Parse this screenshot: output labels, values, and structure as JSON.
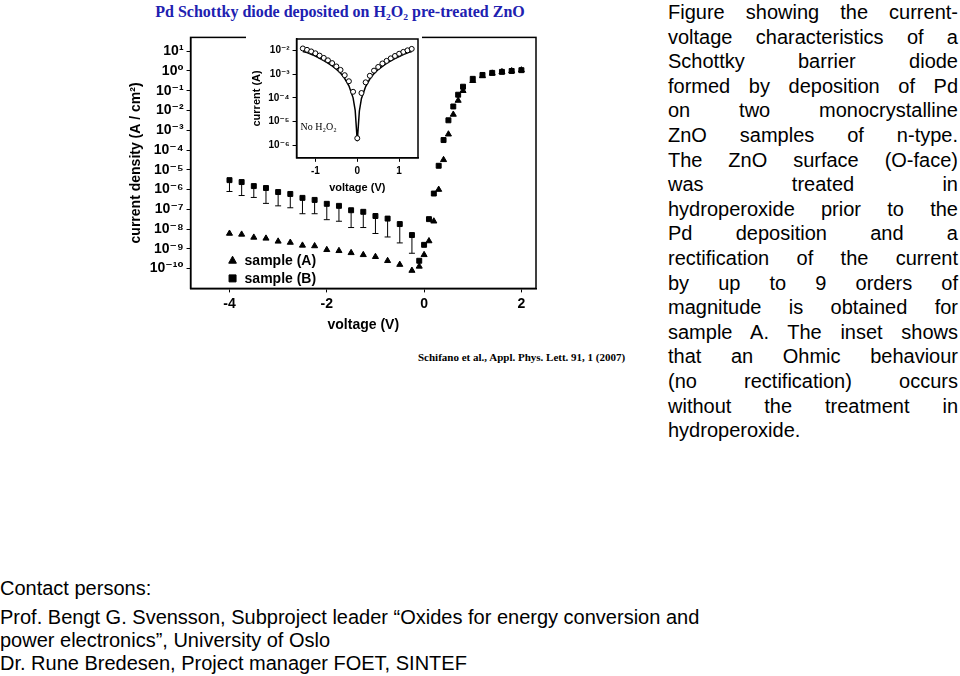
{
  "chart_data": [
    {
      "type": "scatter",
      "title": "Pd Schottky diode deposited on H₂O₂ pre-treated ZnO",
      "x_label": "voltage (V)",
      "y_label": "current density (A / cm²)",
      "x": [
        -4,
        -3.75,
        -3.5,
        -3.25,
        -3,
        -2.75,
        -2.5,
        -2.25,
        -2,
        -1.75,
        -1.5,
        -1.25,
        -1,
        -0.75,
        -0.5,
        -0.25,
        -0.1,
        0,
        0.1,
        0.2,
        0.3,
        0.4,
        0.5,
        0.6,
        0.7,
        0.8,
        1.0,
        1.2,
        1.4,
        1.6,
        1.8,
        2.0
      ],
      "series": [
        {
          "name": "sample (A)",
          "color": "#000000",
          "marker": "triangle",
          "values": [
            6e-09,
            5.4e-09,
            3.8e-09,
            3.4e-09,
            2.4e-09,
            2.1e-09,
            1.5e-09,
            1.4e-09,
            9e-10,
            8e-10,
            6.3e-10,
            5e-10,
            4e-10,
            2.5e-10,
            1.6e-10,
            8e-11,
            1.3e-10,
            5e-10,
            2.5e-09,
            2.5e-08,
            1e-06,
            3.2e-05,
            0.00063,
            0.0063,
            0.032,
            0.1,
            0.32,
            0.56,
            0.76,
            0.9,
            1.0,
            1.1
          ]
        },
        {
          "name": "sample (B)",
          "color": "#000000",
          "marker": "square",
          "values": [
            3e-06,
            2.4e-06,
            1.5e-06,
            1.2e-06,
            7.5e-07,
            6e-07,
            3.8e-07,
            3e-07,
            1.9e-07,
            1.5e-07,
            9e-08,
            7.5e-08,
            4.6e-08,
            3.4e-08,
            1.8e-08,
            5e-09,
            2.5e-10,
            1.6e-09,
            3.2e-08,
            6.3e-07,
            1.6e-05,
            0.00032,
            0.0032,
            0.016,
            0.063,
            0.16,
            0.4,
            0.63,
            0.8,
            0.9,
            1.0,
            1.1
          ],
          "error_low": [
            8e-07,
            5e-07,
            4e-07,
            2e-07,
            1.5e-07,
            1.2e-07,
            6e-08,
            6e-08,
            3e-08,
            2.5e-08,
            1.2e-08,
            1.2e-08,
            6e-09,
            4e-09,
            2e-09,
            6e-10,
            null,
            null,
            null,
            null,
            null,
            null,
            null,
            null,
            null,
            null,
            null,
            null,
            null,
            null,
            null,
            null
          ]
        }
      ],
      "xlim": [
        -4.8,
        2.3
      ],
      "xticks": [
        -4,
        -2,
        0,
        2
      ],
      "ylim": [
        1e-11,
        50
      ],
      "yticks": [
        {
          "value": 10,
          "label": "10¹"
        },
        {
          "value": 1,
          "label": "10⁰"
        },
        {
          "value": 0.1,
          "label": "10⁻¹"
        },
        {
          "value": 0.01,
          "label": "10⁻²"
        },
        {
          "value": 0.001,
          "label": "10⁻³"
        },
        {
          "value": 0.0001,
          "label": "10⁻⁴"
        },
        {
          "value": 1e-05,
          "label": "10⁻⁵"
        },
        {
          "value": 1e-06,
          "label": "10⁻⁶"
        },
        {
          "value": 1e-07,
          "label": "10⁻⁷"
        },
        {
          "value": 1e-08,
          "label": "10⁻⁸"
        },
        {
          "value": 1e-09,
          "label": "10⁻⁹"
        },
        {
          "value": 1e-10,
          "label": "10⁻¹⁰"
        }
      ],
      "log": "y",
      "grid": false,
      "legend": "lower left"
    },
    {
      "type": "scatter",
      "annotation": "No H₂O₂",
      "x_label": "voltage (V)",
      "y_label": "current (A)",
      "series": [
        {
          "color": "#000000",
          "marker": "open circle",
          "x": [
            -1.3,
            -1.2,
            -1.1,
            -1.0,
            -0.9,
            -0.8,
            -0.7,
            -0.6,
            -0.5,
            -0.4,
            -0.3,
            -0.2,
            -0.1,
            0,
            0.1,
            0.2,
            0.3,
            0.4,
            0.5,
            0.6,
            0.7,
            0.8,
            0.9,
            1.0,
            1.1,
            1.2,
            1.3
          ],
          "values": [
            0.012,
            0.0105,
            0.009,
            0.0075,
            0.006,
            0.0048,
            0.0038,
            0.0029,
            0.0021,
            0.0015,
            0.0009,
            0.0005,
            0.00018,
            2e-06,
            0.00016,
            0.00045,
            0.00085,
            0.0014,
            0.002,
            0.0028,
            0.0036,
            0.0046,
            0.0058,
            0.0072,
            0.0086,
            0.01,
            0.0115
          ]
        },
        {
          "color": "#000000",
          "line_style": "solid",
          "x": [
            -1.3,
            -1.2,
            -1.1,
            -1.0,
            -0.9,
            -0.8,
            -0.7,
            -0.6,
            -0.5,
            -0.4,
            -0.3,
            -0.2,
            -0.1,
            -0.05,
            0,
            0.05,
            0.1,
            0.2,
            0.3,
            0.4,
            0.5,
            0.6,
            0.7,
            0.8,
            0.9,
            1.0,
            1.1,
            1.2,
            1.3
          ],
          "values": [
            0.009,
            0.008,
            0.0068,
            0.0057,
            0.0046,
            0.0037,
            0.0029,
            0.0022,
            0.0016,
            0.0011,
            0.00065,
            0.00032,
            0.0001,
            3e-05,
            1.5e-06,
            2.8e-05,
            9.5e-05,
            0.0003,
            0.00062,
            0.00105,
            0.00155,
            0.0021,
            0.0028,
            0.0036,
            0.0045,
            0.0055,
            0.0066,
            0.0078,
            0.009
          ]
        }
      ],
      "xlim": [
        -1.45,
        1.45
      ],
      "xticks": [
        -1,
        0,
        1
      ],
      "ylim": [
        3e-07,
        0.03
      ],
      "yticks": [
        {
          "value": 0.01,
          "label": "10⁻²"
        },
        {
          "value": 0.001,
          "label": "10⁻³"
        },
        {
          "value": 0.0001,
          "label": "10⁻⁴"
        },
        {
          "value": 1e-05,
          "label": "10⁻⁵"
        },
        {
          "value": 1e-06,
          "label": "10⁻⁶"
        }
      ],
      "log": "y",
      "grid": false
    }
  ],
  "citation": "Schifano et al., Appl. Phys. Lett. 91, 1 (2007)",
  "caption_lines": [
    "Figure showing the current-",
    "voltage characteristics of a",
    "Schottky barrier diode",
    "formed by deposition of Pd",
    "on two monocrystalline",
    "ZnO samples of n-type.",
    "The ZnO surface (O-face)",
    "was treated in",
    "hydroperoxide prior to the",
    "Pd deposition and a",
    "rectification of the current",
    "by up to 9 orders of",
    "magnitude is obtained for",
    "sample A. The inset shows",
    "that an Ohmic behaviour",
    "(no rectification) occurs",
    "without the treatment in",
    "hydroperoxide."
  ],
  "contacts": {
    "heading": "Contact persons:",
    "lines": [
      "Prof. Bengt G. Svensson, Subproject leader “Oxides for energy conversion and",
      "power electronics”, University of Oslo",
      "Dr. Rune Bredesen, Project manager FOET, SINTEF"
    ]
  }
}
